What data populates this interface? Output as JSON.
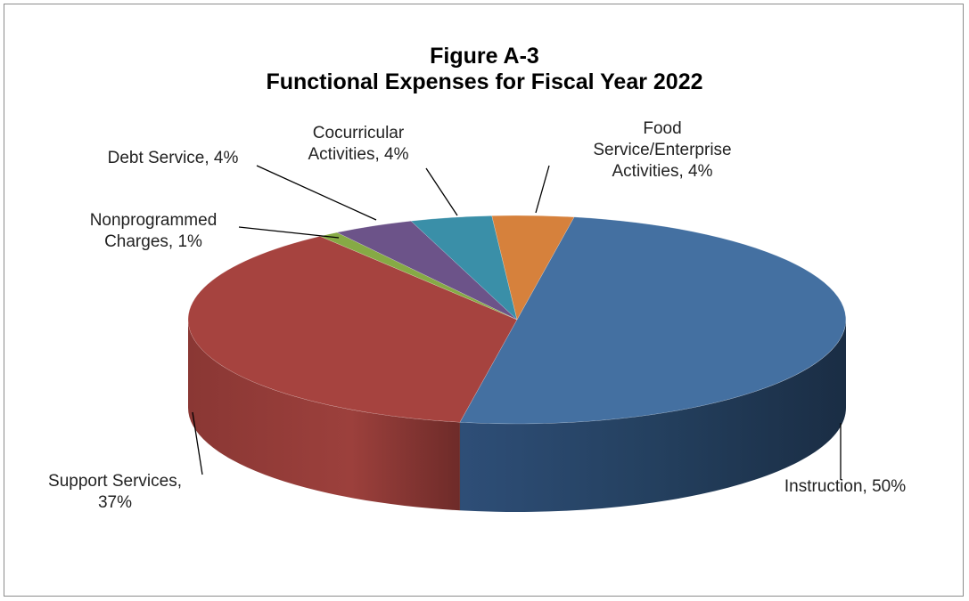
{
  "chart_data": {
    "type": "pie",
    "title": "Figure A-3",
    "subtitle": "Functional Expenses for Fiscal Year 2022",
    "unit": "%",
    "slices": [
      {
        "key": "instruction",
        "label": "Instruction",
        "value": 50,
        "color": "#4470A1",
        "label_lines": [
          "Instruction, 50%"
        ]
      },
      {
        "key": "support",
        "label": "Support Services",
        "value": 37,
        "color": "#A6433F",
        "label_lines": [
          "Support Services,",
          "37%"
        ]
      },
      {
        "key": "nonprog",
        "label": "Nonprogrammed Charges",
        "value": 1,
        "color": "#86AA45",
        "label_lines": [
          "Nonprogrammed",
          "Charges, 1%"
        ]
      },
      {
        "key": "debt",
        "label": "Debt Service",
        "value": 4,
        "color": "#6C5389",
        "label_lines": [
          "Debt Service, 4%"
        ]
      },
      {
        "key": "cocurricular",
        "label": "Cocurricular Activities",
        "value": 4,
        "color": "#3A8FA8",
        "label_lines": [
          "Cocurricular",
          "Activities, 4%"
        ]
      },
      {
        "key": "food",
        "label": "Food Service/Enterprise Activities",
        "value": 4,
        "color": "#D6813C",
        "label_lines": [
          "Food",
          "Service/Enterprise",
          "Activities, 4%"
        ]
      }
    ],
    "legend": "none",
    "style": "3d-pie"
  }
}
